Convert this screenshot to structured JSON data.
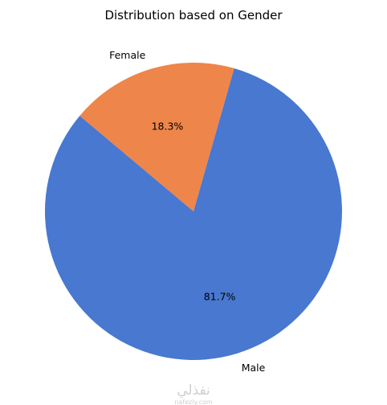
{
  "chart_data": {
    "type": "pie",
    "title": "Distribution based on Gender",
    "start_angle_deg": 140,
    "direction": "counterclockwise",
    "slices": [
      {
        "label": "Male",
        "value": 81.7,
        "pct_label": "81.7%",
        "color": "#4878d0"
      },
      {
        "label": "Female",
        "value": 18.3,
        "pct_label": "18.3%",
        "color": "#ee854a"
      }
    ]
  },
  "watermark": {
    "arabic": "نفذلي",
    "latin": "nafezly.com"
  }
}
